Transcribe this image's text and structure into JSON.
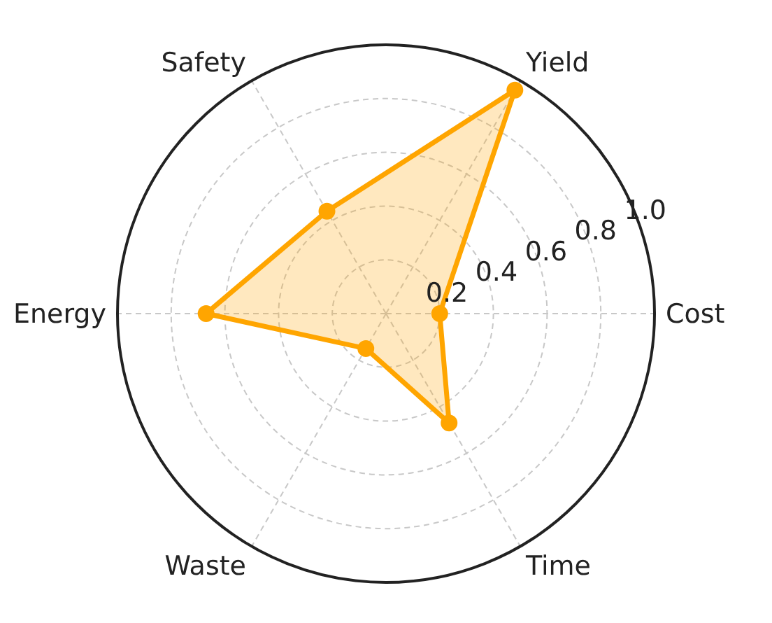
{
  "chart_data": {
    "type": "radar",
    "categories": [
      "Yield",
      "Cost",
      "Time",
      "Waste",
      "Energy",
      "Safety"
    ],
    "series": [
      {
        "color": "#ffa500",
        "values": [
          0.96,
          0.2,
          0.47,
          0.15,
          0.67,
          0.44
        ]
      }
    ],
    "ylim": [
      0,
      1.0
    ],
    "yticks": [
      0.2,
      0.4,
      0.6,
      0.8,
      {
        "value": 1,
        "label": "1.0"
      }
    ],
    "grid": true,
    "marker": "circle"
  }
}
